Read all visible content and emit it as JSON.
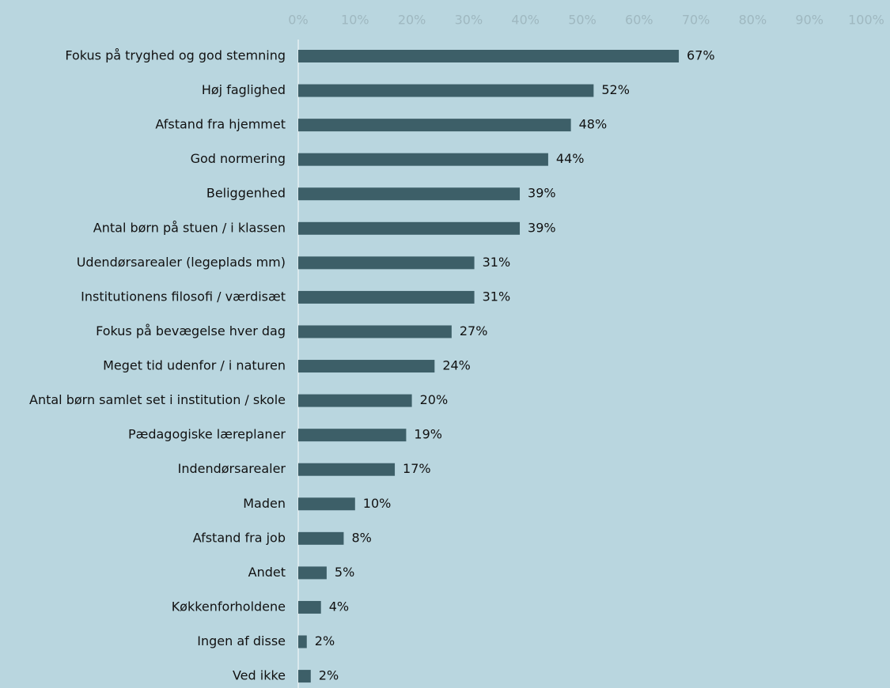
{
  "chart_data": {
    "type": "barh",
    "categories": [
      "Fokus på tryghed og god stemning",
      "Høj faglighed",
      "Afstand fra hjemmet",
      "God normering",
      "Beliggenhed",
      "Antal børn på stuen / i klassen",
      "Udendørsarealer (legeplads mm)",
      "Institutionens filosofi / værdisæt",
      "Fokus på bevægelse hver dag",
      "Meget tid udenfor / i naturen",
      "Antal børn samlet set i institution / skole",
      "Pædagogiske læreplaner",
      "Indendørsarealer",
      "Maden",
      "Afstand fra job",
      "Andet",
      "Køkkenforholdene",
      "Ingen af disse",
      "Ved ikke"
    ],
    "values": [
      67,
      52,
      48,
      44,
      39,
      39,
      31,
      31,
      27,
      24,
      20,
      19,
      17,
      10,
      8,
      5,
      4,
      1.5,
      2.2
    ],
    "value_labels": [
      "67%",
      "52%",
      "48%",
      "44%",
      "39%",
      "39%",
      "31%",
      "31%",
      "27%",
      "24%",
      "20%",
      "19%",
      "17%",
      "10%",
      "8%",
      "5%",
      "4%",
      "2%",
      "2%"
    ],
    "color": "#3d5f68",
    "xlim": [
      0,
      100
    ],
    "xticks": [
      {
        "value": 0,
        "label": "0%"
      },
      {
        "value": 10,
        "label": "10%"
      },
      {
        "value": 20,
        "label": "20%"
      },
      {
        "value": 30,
        "label": "30%"
      },
      {
        "value": 40,
        "label": "40%"
      },
      {
        "value": 50,
        "label": "50%"
      },
      {
        "value": 60,
        "label": "60%"
      },
      {
        "value": 70,
        "label": "70%"
      },
      {
        "value": 80,
        "label": "80%"
      },
      {
        "value": 90,
        "label": "90%"
      },
      {
        "value": 100,
        "label": "100%"
      }
    ]
  }
}
